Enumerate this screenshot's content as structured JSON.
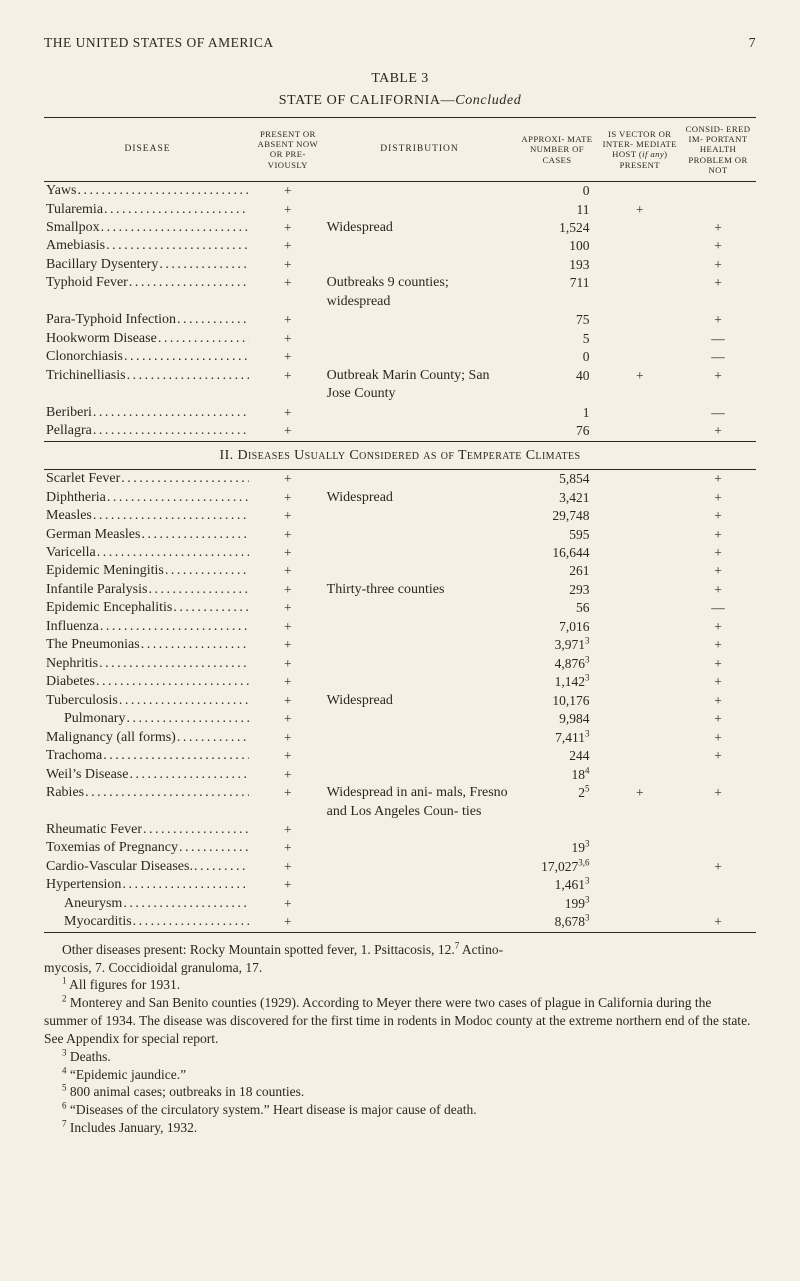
{
  "runningHead": {
    "left": "THE UNITED STATES OF AMERICA",
    "pageNo": "7"
  },
  "tableNo": "TABLE 3",
  "tableTitlePlain": "STATE OF CALIFORNIA—",
  "tableTitleItalic": "Concluded",
  "columns": {
    "disease": "disease",
    "present": "PRESENT OR ABSENT NOW OR PRE- VIOUSLY",
    "distribution": "distribution",
    "approx": "APPROXI- MATE NUMBER OF CASES",
    "vectorPre": "IS VECTOR OR INTER- MEDIATE HOST (",
    "vectorItal": "if any",
    "vectorPost": ") PRESENT",
    "consid": "CONSID- ERED IM- PORTANT HEALTH PROBLEM OR NOT"
  },
  "rows1": [
    {
      "disease": "Yaws",
      "present": "+",
      "dist": "",
      "approx": "0",
      "vector": "",
      "consid": ""
    },
    {
      "disease": "Tularemia",
      "present": "+",
      "dist": "",
      "approx": "11",
      "vector": "+",
      "consid": ""
    },
    {
      "disease": "Smallpox",
      "present": "+",
      "dist": "Widespread",
      "approx": "1,524",
      "vector": "",
      "consid": "+"
    },
    {
      "disease": "Amebiasis",
      "present": "+",
      "dist": "",
      "approx": "100",
      "vector": "",
      "consid": "+"
    },
    {
      "disease": "Bacillary Dysentery",
      "present": "+",
      "dist": "",
      "approx": "193",
      "vector": "",
      "consid": "+"
    },
    {
      "disease": "Typhoid Fever",
      "present": "+",
      "dist": "Outbreaks 9 counties; widespread",
      "approx": "711",
      "vector": "",
      "consid": "+"
    },
    {
      "disease": "Para-Typhoid Infection",
      "present": "+",
      "dist": "",
      "approx": "75",
      "vector": "",
      "consid": "+"
    },
    {
      "disease": "Hookworm Disease",
      "present": "+",
      "dist": "",
      "approx": "5",
      "vector": "",
      "consid": "—"
    },
    {
      "disease": "Clonorchiasis",
      "present": "+",
      "dist": "",
      "approx": "0",
      "vector": "",
      "consid": "—"
    },
    {
      "disease": "Trichinelliasis",
      "present": "+",
      "dist": "Outbreak Marin County; San Jose County",
      "approx": "40",
      "vector": "+",
      "consid": "+"
    },
    {
      "disease": "Beriberi",
      "present": "+",
      "dist": "",
      "approx": "1",
      "vector": "",
      "consid": "—"
    },
    {
      "disease": "Pellagra",
      "present": "+",
      "dist": "",
      "approx": "76",
      "vector": "",
      "consid": "+"
    }
  ],
  "sectionHead": "II. Diseases Usually Considered as of Temperate Climates",
  "rows2": [
    {
      "disease": "Scarlet Fever",
      "present": "+",
      "dist": "",
      "approx": "5,854",
      "vector": "",
      "consid": "+"
    },
    {
      "disease": "Diphtheria",
      "present": "+",
      "dist": "Widespread",
      "approx": "3,421",
      "vector": "",
      "consid": "+"
    },
    {
      "disease": "Measles",
      "present": "+",
      "dist": "",
      "approx": "29,748",
      "vector": "",
      "consid": "+"
    },
    {
      "disease": "German Measles",
      "present": "+",
      "dist": "",
      "approx": "595",
      "vector": "",
      "consid": "+"
    },
    {
      "disease": "Varicella",
      "present": "+",
      "dist": "",
      "approx": "16,644",
      "vector": "",
      "consid": "+"
    },
    {
      "disease": "Epidemic Meningitis",
      "present": "+",
      "dist": "",
      "approx": "261",
      "vector": "",
      "consid": "+"
    },
    {
      "disease": "Infantile Paralysis",
      "present": "+",
      "dist": "Thirty-three counties",
      "approx": "293",
      "vector": "",
      "consid": "+"
    },
    {
      "disease": "Epidemic Encephalitis",
      "present": "+",
      "dist": "",
      "approx": "56",
      "vector": "",
      "consid": "—"
    },
    {
      "disease": "Influenza",
      "present": "+",
      "dist": "",
      "approx": "7,016",
      "vector": "",
      "consid": "+"
    },
    {
      "disease": "The Pneumonias",
      "present": "+",
      "dist": "",
      "approx": "3,971",
      "approxSup": "3",
      "vector": "",
      "consid": "+"
    },
    {
      "disease": "Nephritis",
      "present": "+",
      "dist": "",
      "approx": "4,876",
      "approxSup": "3",
      "vector": "",
      "consid": "+"
    },
    {
      "disease": "Diabetes",
      "present": "+",
      "dist": "",
      "approx": "1,142",
      "approxSup": "3",
      "vector": "",
      "consid": "+"
    },
    {
      "disease": "Tuberculosis",
      "present": "+",
      "dist": "Widespread",
      "approx": "10,176",
      "vector": "",
      "consid": "+"
    },
    {
      "disease": "Pulmonary",
      "indent": true,
      "present": "+",
      "dist": "",
      "approx": "9,984",
      "vector": "",
      "consid": "+"
    },
    {
      "disease": "Malignancy (all forms)",
      "present": "+",
      "dist": "",
      "approx": "7,411",
      "approxSup": "3",
      "vector": "",
      "consid": "+"
    },
    {
      "disease": "Trachoma",
      "present": "+",
      "dist": "",
      "approx": "244",
      "vector": "",
      "consid": "+"
    },
    {
      "disease": "Weil’s Disease",
      "present": "+",
      "dist": "",
      "approx": "18",
      "approxSup": "4",
      "vector": "",
      "consid": ""
    },
    {
      "disease": "Rabies",
      "present": "+",
      "dist": "Widespread in ani- mals, Fresno and Los Angeles Coun- ties",
      "approx": "2",
      "approxSup": "5",
      "vector": "+",
      "consid": "+"
    },
    {
      "disease": "Rheumatic Fever",
      "present": "+",
      "dist": "",
      "approx": "",
      "vector": "",
      "consid": ""
    },
    {
      "disease": "Toxemias of Pregnancy",
      "present": "+",
      "dist": "",
      "approx": "19",
      "approxSup": "3",
      "vector": "",
      "consid": ""
    },
    {
      "disease": "Cardio-Vascular Diseases.",
      "present": "+",
      "dist": "",
      "approx": "17,027",
      "approxSup": "3,6",
      "vector": "",
      "consid": "+"
    },
    {
      "disease": "Hypertension",
      "present": "+",
      "dist": "",
      "approx": "1,461",
      "approxSup": "3",
      "vector": "",
      "consid": ""
    },
    {
      "disease": "Aneurysm",
      "indent": true,
      "present": "+",
      "dist": "",
      "approx": "199",
      "approxSup": "3",
      "vector": "",
      "consid": ""
    },
    {
      "disease": "Myocarditis",
      "indent": true,
      "present": "+",
      "dist": "",
      "approx": "8,678",
      "approxSup": "3",
      "vector": "",
      "consid": "+"
    }
  ],
  "footnotes": {
    "lead1a": "Other diseases present: Rocky Mountain spotted fever, 1.  Psittacosis, 12.",
    "lead1sup": "7",
    "lead1b": "  Actino-",
    "lead2": "mycosis, 7.  Coccidioidal granuloma, 17.",
    "n1": "All figures for 1931.",
    "n2": "Monterey and San Benito counties (1929).  According to Meyer there were two cases of plague in California during the summer of 1934.  The disease was discovered for the first time in rodents in Modoc county at the extreme northern end of the state. See Appendix for special report.",
    "n3": "Deaths.",
    "n4": "“Epidemic jaundice.”",
    "n5": "800 animal cases; outbreaks in 18 counties.",
    "n6": "“Diseases of the circulatory system.”  Heart disease is major cause of death.",
    "n7": "Includes January, 1932."
  }
}
